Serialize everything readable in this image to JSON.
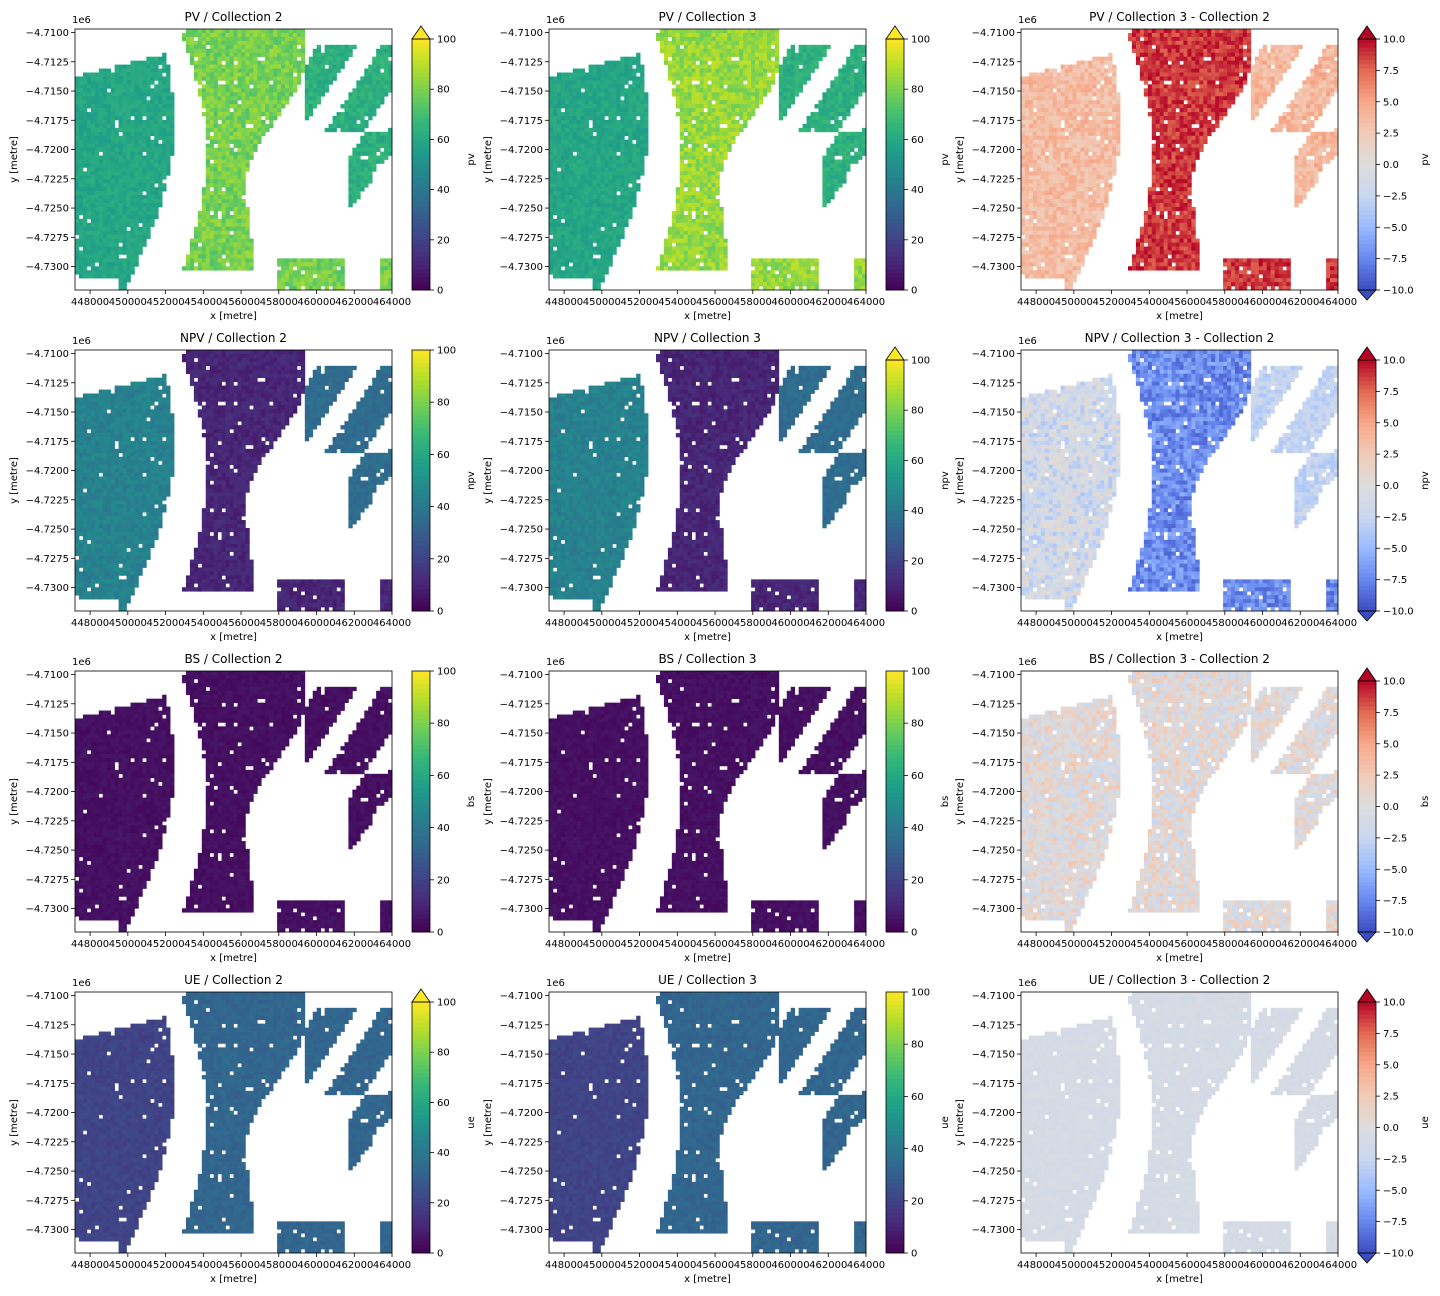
{
  "figure": {
    "common": {
      "xlabel": "x [metre]",
      "ylabel": "y [metre]",
      "y_offset_label": "1e6",
      "x_ticks": [
        448000,
        450000,
        452000,
        454000,
        456000,
        458000,
        460000,
        462000,
        464000
      ],
      "y_ticks": [
        -4.71,
        -4.7125,
        -4.715,
        -4.7175,
        -4.72,
        -4.7225,
        -4.725,
        -4.7275,
        -4.73
      ],
      "xlim": [
        447200,
        464000
      ],
      "ylim": [
        -4.732,
        -4.7097
      ]
    },
    "colormaps": {
      "viridis": [
        "#440154",
        "#482878",
        "#3e4989",
        "#31688e",
        "#26828e",
        "#1f9e89",
        "#35b779",
        "#6ece58",
        "#b5de2b",
        "#fde725"
      ],
      "coolwarm": [
        "#3b4cc0",
        "#6788ee",
        "#9abbff",
        "#c9d7f0",
        "#dddddd",
        "#f2cbb7",
        "#f7a889",
        "#e26952",
        "#b40426"
      ]
    }
  },
  "chart_data": [
    {
      "type": "heatmap",
      "title": "PV / Collection 2",
      "colorbar_label": "pv",
      "cmap": "viridis",
      "clim": [
        0,
        100
      ],
      "colorbar_ticks": [
        "0",
        "20",
        "40",
        "60",
        "80",
        "100"
      ],
      "extend_max": true,
      "extend_min": false
    },
    {
      "type": "heatmap",
      "title": "PV / Collection 3",
      "colorbar_label": "pv",
      "cmap": "viridis",
      "clim": [
        0,
        100
      ],
      "colorbar_ticks": [
        "0",
        "20",
        "40",
        "60",
        "80",
        "100"
      ],
      "extend_max": true,
      "extend_min": false
    },
    {
      "type": "heatmap",
      "title": "PV / Collection 3 - Collection 2",
      "colorbar_label": "pv",
      "cmap": "coolwarm",
      "clim": [
        -10,
        10
      ],
      "colorbar_ticks": [
        "−10.0",
        "−7.5",
        "−5.0",
        "−2.5",
        "0.0",
        "2.5",
        "5.0",
        "7.5",
        "10.0"
      ],
      "extend_max": true,
      "extend_min": true
    },
    {
      "type": "heatmap",
      "title": "NPV / Collection 2",
      "colorbar_label": "npv",
      "cmap": "viridis",
      "clim": [
        0,
        100
      ],
      "colorbar_ticks": [
        "0",
        "20",
        "40",
        "60",
        "80",
        "100"
      ],
      "extend_max": false,
      "extend_min": false
    },
    {
      "type": "heatmap",
      "title": "NPV / Collection 3",
      "colorbar_label": "npv",
      "cmap": "viridis",
      "clim": [
        0,
        100
      ],
      "colorbar_ticks": [
        "0",
        "20",
        "40",
        "60",
        "80",
        "100"
      ],
      "extend_max": true,
      "extend_min": false
    },
    {
      "type": "heatmap",
      "title": "NPV / Collection 3 - Collection 2",
      "colorbar_label": "npv",
      "cmap": "coolwarm",
      "clim": [
        -10,
        10
      ],
      "colorbar_ticks": [
        "−10.0",
        "−7.5",
        "−5.0",
        "−2.5",
        "0.0",
        "2.5",
        "5.0",
        "7.5",
        "10.0"
      ],
      "extend_max": true,
      "extend_min": true
    },
    {
      "type": "heatmap",
      "title": "BS / Collection 2",
      "colorbar_label": "bs",
      "cmap": "viridis",
      "clim": [
        0,
        100
      ],
      "colorbar_ticks": [
        "0",
        "20",
        "40",
        "60",
        "80",
        "100"
      ],
      "extend_max": false,
      "extend_min": false
    },
    {
      "type": "heatmap",
      "title": "BS / Collection 3",
      "colorbar_label": "bs",
      "cmap": "viridis",
      "clim": [
        0,
        100
      ],
      "colorbar_ticks": [
        "0",
        "20",
        "40",
        "60",
        "80",
        "100"
      ],
      "extend_max": false,
      "extend_min": false
    },
    {
      "type": "heatmap",
      "title": "BS / Collection 3 - Collection 2",
      "colorbar_label": "bs",
      "cmap": "coolwarm",
      "clim": [
        -10,
        10
      ],
      "colorbar_ticks": [
        "−10.0",
        "−7.5",
        "−5.0",
        "−2.5",
        "0.0",
        "2.5",
        "5.0",
        "7.5",
        "10.0"
      ],
      "extend_max": true,
      "extend_min": true
    },
    {
      "type": "heatmap",
      "title": "UE / Collection 2",
      "colorbar_label": "ue",
      "cmap": "viridis",
      "clim": [
        0,
        100
      ],
      "colorbar_ticks": [
        "0",
        "20",
        "40",
        "60",
        "80",
        "100"
      ],
      "extend_max": true,
      "extend_min": false
    },
    {
      "type": "heatmap",
      "title": "UE / Collection 3",
      "colorbar_label": "ue",
      "cmap": "viridis",
      "clim": [
        0,
        100
      ],
      "colorbar_ticks": [
        "0",
        "20",
        "40",
        "60",
        "80",
        "100"
      ],
      "extend_max": false,
      "extend_min": false
    },
    {
      "type": "heatmap",
      "title": "UE / Collection 3 - Collection 2",
      "colorbar_label": "ue",
      "cmap": "coolwarm",
      "clim": [
        -10,
        10
      ],
      "colorbar_ticks": [
        "−10.0",
        "−7.5",
        "−5.0",
        "−2.5",
        "0.0",
        "2.5",
        "5.0",
        "7.5",
        "10.0"
      ],
      "extend_max": true,
      "extend_min": true
    }
  ]
}
